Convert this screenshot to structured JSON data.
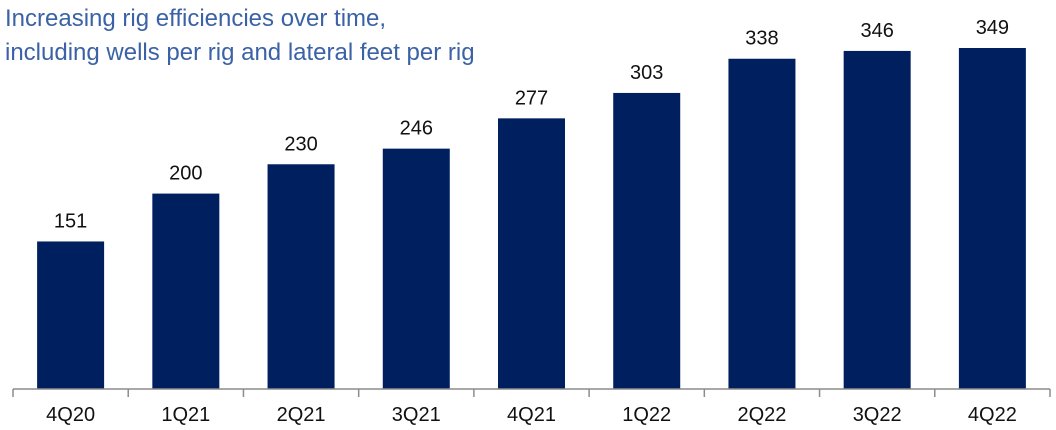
{
  "title_lines": [
    "Increasing rig efficiencies over time,",
    "including wells per rig and lateral feet per rig"
  ],
  "colors": {
    "title": "#3b62a6",
    "bar": "#001f5f",
    "axis": "#8c8c8c"
  },
  "chart_data": {
    "type": "bar",
    "title": "Increasing rig efficiencies over time, including wells per rig and lateral feet per rig",
    "categories": [
      "4Q20",
      "1Q21",
      "2Q21",
      "3Q21",
      "4Q21",
      "1Q22",
      "2Q22",
      "3Q22",
      "4Q22"
    ],
    "values": [
      151,
      200,
      230,
      246,
      277,
      303,
      338,
      346,
      349
    ],
    "xlabel": "",
    "ylabel": "",
    "ylim": [
      0,
      360
    ],
    "grid": false,
    "legend": "none"
  }
}
